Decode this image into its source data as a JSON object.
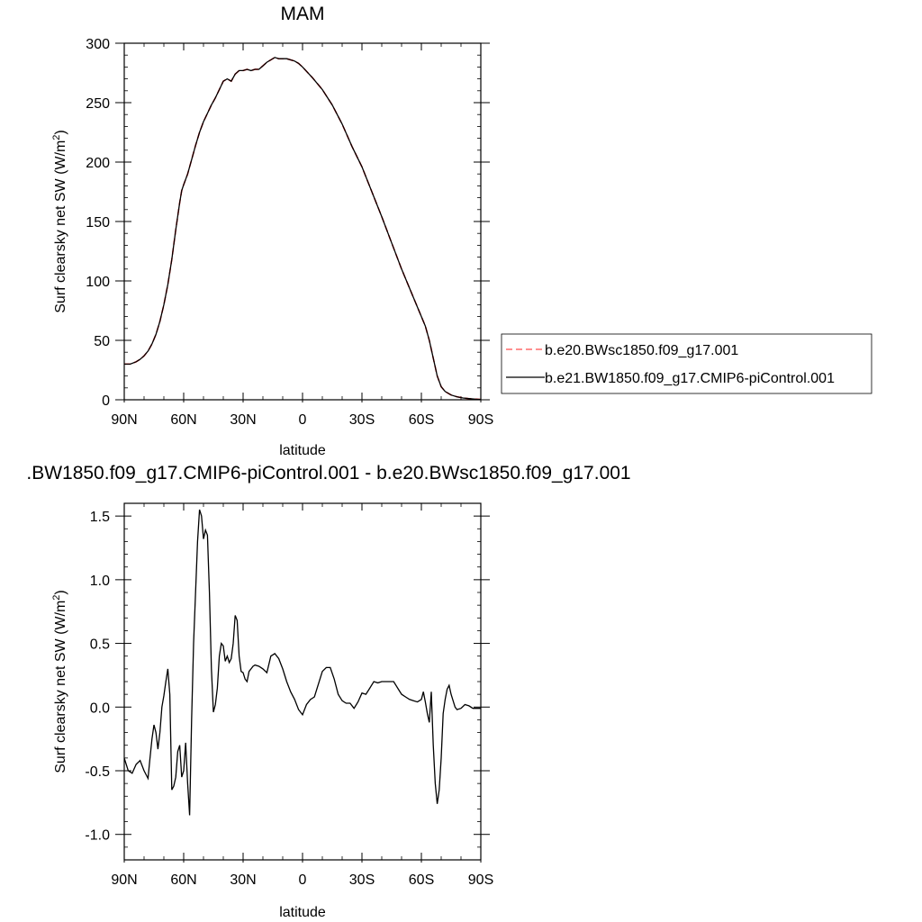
{
  "chart_data": [
    {
      "type": "line",
      "title": "MAM",
      "xlabel": "latitude",
      "ylabel": "Surf clearsky net SW (W/m",
      "ylabel_sup": "2",
      "ylabel_close": ")",
      "xlim": [
        90,
        -90
      ],
      "ylim": [
        0,
        300
      ],
      "x_ticks": [
        90,
        60,
        30,
        0,
        -30,
        -60,
        -90
      ],
      "x_tick_labels": [
        "90N",
        "60N",
        "30N",
        "0",
        "30S",
        "60S",
        "90S"
      ],
      "y_ticks": [
        0,
        50,
        100,
        150,
        200,
        250,
        300
      ],
      "y_tick_labels": [
        "0",
        "50",
        "100",
        "150",
        "200",
        "250",
        "300"
      ],
      "legend_position": "right",
      "series": [
        {
          "name": "b.e20.BWsc1850.f09_g17.001",
          "color": "#ff0000",
          "style": "dashed",
          "x": [
            90,
            87,
            84,
            82,
            80,
            78,
            76,
            74,
            72,
            70,
            68,
            66,
            64,
            62,
            61,
            60,
            58,
            56,
            54,
            52,
            50,
            48,
            46,
            44,
            42,
            40,
            38,
            36,
            34,
            32,
            30,
            28,
            26,
            24,
            22,
            20,
            18,
            16,
            14,
            12,
            10,
            8,
            6,
            4,
            2,
            0,
            -5,
            -10,
            -15,
            -20,
            -25,
            -30,
            -35,
            -40,
            -45,
            -50,
            -55,
            -60,
            -62,
            -64,
            -66,
            -68,
            -70,
            -72,
            -75,
            -78,
            -81,
            -84,
            -87,
            -90
          ],
          "y": [
            30,
            30,
            32,
            34,
            37,
            41,
            47,
            55,
            66,
            80,
            97,
            118,
            143,
            166,
            176,
            181,
            190,
            202,
            214,
            225,
            234,
            241,
            248,
            254,
            261,
            268,
            270,
            268,
            274,
            277,
            277,
            278,
            277,
            278,
            278,
            281,
            284,
            286,
            288,
            287,
            287,
            287,
            286,
            285,
            283,
            280,
            271,
            261,
            248,
            232,
            213,
            196,
            175,
            154,
            132,
            110,
            90,
            70,
            62,
            50,
            35,
            20,
            11,
            7,
            4,
            2.5,
            1.5,
            1,
            0.5,
            0.3
          ]
        },
        {
          "name": "b.e21.BW1850.f09_g17.CMIP6-piControl.001",
          "color": "#000000",
          "style": "solid",
          "x": [
            90,
            87,
            84,
            82,
            80,
            78,
            76,
            74,
            72,
            70,
            68,
            66,
            64,
            62,
            61,
            60,
            58,
            56,
            54,
            52,
            50,
            48,
            46,
            44,
            42,
            40,
            38,
            36,
            34,
            32,
            30,
            28,
            26,
            24,
            22,
            20,
            18,
            16,
            14,
            12,
            10,
            8,
            6,
            4,
            2,
            0,
            -5,
            -10,
            -15,
            -20,
            -25,
            -30,
            -35,
            -40,
            -45,
            -50,
            -55,
            -60,
            -62,
            -64,
            -66,
            -68,
            -70,
            -72,
            -75,
            -78,
            -81,
            -84,
            -87,
            -90
          ],
          "y": [
            30,
            30,
            32,
            34,
            37,
            41,
            47,
            55,
            66,
            80,
            97,
            118,
            143,
            166,
            176,
            181,
            190,
            202,
            214,
            225,
            234,
            241,
            248,
            254,
            261,
            268,
            270,
            268,
            274,
            277,
            277,
            278,
            277,
            278,
            278,
            281,
            284,
            286,
            288,
            287,
            287,
            287,
            286,
            285,
            283,
            280,
            271,
            261,
            248,
            232,
            213,
            196,
            175,
            154,
            132,
            110,
            90,
            70,
            62,
            50,
            35,
            20,
            11,
            7,
            4,
            2.5,
            1.5,
            1,
            0.5,
            0.3
          ]
        }
      ]
    },
    {
      "type": "line",
      "title": ".BW1850.f09_g17.CMIP6-piControl.001 - b.e20.BWsc1850.f09_g17.001",
      "xlabel": "latitude",
      "ylabel": "Surf clearsky net SW (W/m",
      "ylabel_sup": "2",
      "ylabel_close": ")",
      "xlim": [
        90,
        -90
      ],
      "ylim": [
        -1.2,
        1.6
      ],
      "x_ticks": [
        90,
        60,
        30,
        0,
        -30,
        -60,
        -90
      ],
      "x_tick_labels": [
        "90N",
        "60N",
        "30N",
        "0",
        "30S",
        "60S",
        "90S"
      ],
      "y_ticks": [
        1.5,
        1.0,
        0.5,
        0.0,
        -0.5,
        -1.0
      ],
      "y_tick_labels": [
        "1.5",
        "1.0",
        "0.5",
        "0.0",
        "-0.5",
        "-1.0"
      ],
      "series": [
        {
          "color": "#000000",
          "style": "solid",
          "x": [
            90,
            88,
            86,
            84,
            82,
            80,
            78,
            77,
            76,
            75,
            74,
            73,
            72,
            71,
            70,
            69,
            68,
            67,
            66,
            65,
            64,
            63,
            62,
            61,
            60,
            59,
            58,
            57,
            56,
            55,
            54,
            53,
            52,
            51,
            50,
            49,
            48,
            47,
            46,
            45,
            44,
            43,
            42,
            41,
            40,
            39,
            38,
            37,
            36,
            35,
            34,
            33,
            32,
            31,
            30,
            29,
            28,
            27,
            26,
            25,
            24,
            22,
            20,
            18,
            16,
            14,
            12,
            10,
            8,
            6,
            4,
            2,
            0,
            -2,
            -4,
            -6,
            -8,
            -10,
            -12,
            -14,
            -16,
            -18,
            -20,
            -22,
            -24,
            -26,
            -28,
            -30,
            -32,
            -34,
            -36,
            -38,
            -40,
            -42,
            -44,
            -46,
            -48,
            -50,
            -52,
            -54,
            -56,
            -58,
            -60,
            -61,
            -62,
            -63,
            -64,
            -65,
            -66,
            -67,
            -68,
            -69,
            -70,
            -71,
            -72,
            -73,
            -74,
            -75,
            -76,
            -77,
            -78,
            -80,
            -82,
            -84,
            -86,
            -88,
            -90
          ],
          "y": [
            -0.4,
            -0.5,
            -0.52,
            -0.45,
            -0.42,
            -0.5,
            -0.56,
            -0.4,
            -0.25,
            -0.14,
            -0.2,
            -0.33,
            -0.2,
            0.0,
            0.09,
            0.2,
            0.3,
            0.1,
            -0.65,
            -0.62,
            -0.55,
            -0.35,
            -0.3,
            -0.55,
            -0.5,
            -0.28,
            -0.6,
            -0.85,
            -0.1,
            0.5,
            0.9,
            1.3,
            1.55,
            1.5,
            1.32,
            1.39,
            1.35,
            0.9,
            0.3,
            -0.04,
            0.02,
            0.15,
            0.4,
            0.5,
            0.48,
            0.36,
            0.4,
            0.35,
            0.38,
            0.5,
            0.72,
            0.68,
            0.4,
            0.28,
            0.27,
            0.22,
            0.2,
            0.28,
            0.3,
            0.32,
            0.33,
            0.32,
            0.3,
            0.27,
            0.4,
            0.42,
            0.38,
            0.3,
            0.2,
            0.12,
            0.06,
            -0.02,
            -0.06,
            0.02,
            0.06,
            0.08,
            0.18,
            0.28,
            0.31,
            0.31,
            0.22,
            0.1,
            0.05,
            0.03,
            0.03,
            -0.01,
            0.04,
            0.11,
            0.1,
            0.15,
            0.2,
            0.19,
            0.2,
            0.2,
            0.2,
            0.2,
            0.15,
            0.1,
            0.08,
            0.06,
            0.05,
            0.04,
            0.06,
            0.12,
            0.04,
            -0.05,
            -0.12,
            0.12,
            -0.3,
            -0.6,
            -0.76,
            -0.65,
            -0.4,
            -0.05,
            0.06,
            0.14,
            0.17,
            0.1,
            0.05,
            0.0,
            -0.02,
            -0.01,
            0.02,
            0.01,
            -0.01,
            -0.01,
            -0.01
          ]
        }
      ]
    }
  ]
}
